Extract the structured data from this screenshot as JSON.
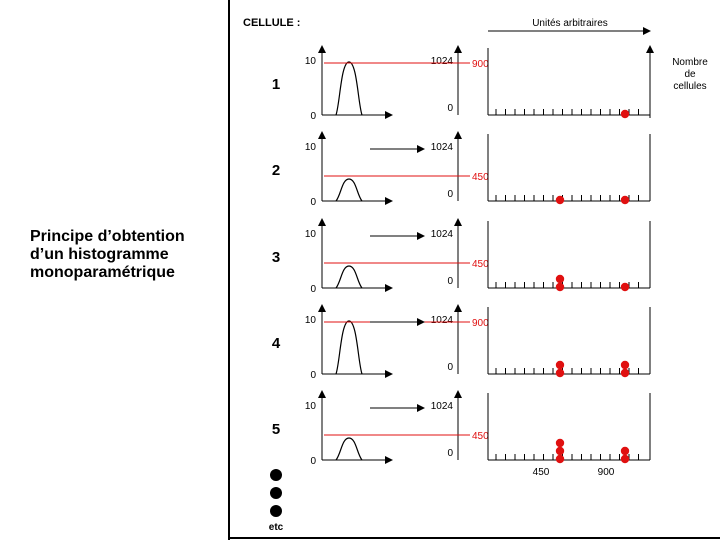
{
  "caption": {
    "line1": "Principe d’obtention",
    "line2": "d’un histogramme",
    "line3": "monoparamétrique"
  },
  "header": {
    "cell_label": "CELLULE :",
    "units_label": "Unités arbitraires",
    "count_label_1": "Nombre",
    "count_label_2": "de",
    "count_label_3": "cellules"
  },
  "signal_axis": {
    "max_label": "10",
    "min_label": "0"
  },
  "scale_axis": {
    "max_label": "1024",
    "min_label": "0"
  },
  "panels": [
    {
      "number": "1",
      "level_label": "900",
      "has_arrow": false,
      "dots_450": 0,
      "dots_900": 1
    },
    {
      "number": "2",
      "level_label": "450",
      "has_arrow": true,
      "dots_450": 1,
      "dots_900": 1
    },
    {
      "number": "3",
      "level_label": "450",
      "has_arrow": true,
      "dots_450": 2,
      "dots_900": 1
    },
    {
      "number": "4",
      "level_label": "900",
      "has_arrow": true,
      "dots_450": 2,
      "dots_900": 2
    },
    {
      "number": "5",
      "level_label": "450",
      "has_arrow": true,
      "dots_450": 3,
      "dots_900": 2
    }
  ],
  "x_ticks": {
    "t450": "450",
    "t900": "900"
  },
  "footer": {
    "etc_label": "etc"
  },
  "colors": {
    "accent": "#e01010",
    "line": "#000000"
  }
}
